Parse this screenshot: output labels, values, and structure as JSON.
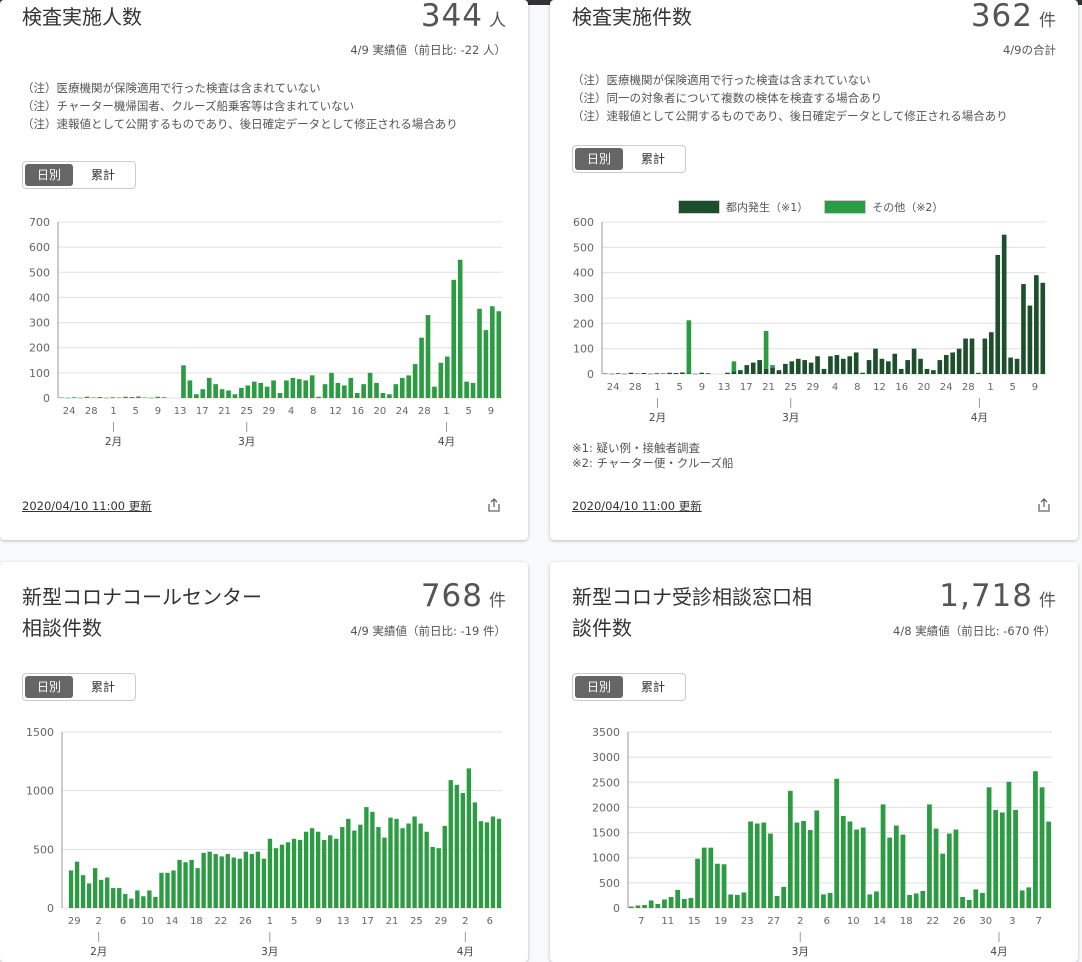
{
  "cards": [
    {
      "title_lines": [
        "検査実施人数"
      ],
      "value": "344",
      "unit": "人",
      "sub": "4/9 実績値（前日比: -22 人）",
      "notes": [
        "（注）医療機関が保険適用で行った検査は含まれていない",
        "（注）チャーター機帰国者、クルーズ船乗客等は含まれていない",
        "（注）速報値として公開するものであり、後日確定データとして修正される場合あり"
      ],
      "toggle": [
        "日別",
        "累計"
      ],
      "footer_date": "2020/04/10 11:00 更新",
      "footnotes": []
    },
    {
      "title_lines": [
        "検査実施件数"
      ],
      "value": "362",
      "unit": "件",
      "sub": "4/9の合計",
      "notes": [
        "（注）医療機関が保険適用で行った検査は含まれていない",
        "（注）同一の対象者について複数の検体を検査する場合あり",
        "（注）速報値として公開するものであり、後日確定データとして修正される場合あり"
      ],
      "toggle": [
        "日別",
        "累計"
      ],
      "footer_date": "2020/04/10 11:00 更新",
      "footnotes": [
        "※1: 疑い例・接触者調査",
        "※2: チャーター便・クルーズ船"
      ]
    },
    {
      "title_lines": [
        "新型コロナコールセンター",
        "相談件数"
      ],
      "value": "768",
      "unit": "件",
      "sub": "4/9 実績値（前日比: -19 件）",
      "notes": [],
      "toggle": [
        "日別",
        "累計"
      ],
      "footer_date": "",
      "footnotes": []
    },
    {
      "title_lines": [
        "新型コロナ受診相談窓口相",
        "談件数"
      ],
      "value": "1,718",
      "unit": "件",
      "sub": "4/8 実績値（前日比: -670 件）",
      "notes": [],
      "toggle": [
        "日別",
        "累計"
      ],
      "footer_date": "",
      "footnotes": []
    }
  ],
  "colors": {
    "green": "#2c9c43",
    "dark_green": "#1d4f2c",
    "grid": "#e0e0e0",
    "axis_text": "#666"
  },
  "chart_data": [
    {
      "type": "bar",
      "ylim": [
        0,
        700
      ],
      "yticks": [
        0,
        100,
        200,
        300,
        400,
        500,
        600,
        700
      ],
      "xtick_labels": [
        "24",
        "28",
        "1",
        "5",
        "9",
        "13",
        "17",
        "21",
        "25",
        "29",
        "4",
        "8",
        "12",
        "16",
        "20",
        "24",
        "28",
        "1",
        "5",
        "9"
      ],
      "month_labels": [
        {
          "label": "2月",
          "at": 2
        },
        {
          "label": "3月",
          "at": 8
        },
        {
          "label": "4月",
          "at": 17
        }
      ],
      "series": [
        {
          "values": [
            2,
            1,
            3,
            1,
            5,
            2,
            4,
            1,
            3,
            2,
            5,
            4,
            6,
            2,
            1,
            5,
            3,
            0,
            0,
            130,
            70,
            15,
            35,
            80,
            55,
            35,
            30,
            15,
            40,
            50,
            65,
            60,
            45,
            70,
            20,
            70,
            80,
            75,
            70,
            90,
            5,
            55,
            100,
            60,
            50,
            80,
            20,
            55,
            100,
            60,
            20,
            15,
            55,
            80,
            90,
            135,
            240,
            330,
            45,
            140,
            165,
            470,
            550,
            65,
            60,
            355,
            270,
            365,
            345
          ]
        }
      ]
    },
    {
      "type": "bar",
      "stacked": true,
      "ylim": [
        0,
        600
      ],
      "yticks": [
        0,
        100,
        200,
        300,
        400,
        500,
        600
      ],
      "xtick_labels": [
        "24",
        "28",
        "1",
        "5",
        "9",
        "13",
        "17",
        "21",
        "25",
        "29",
        "4",
        "8",
        "12",
        "16",
        "20",
        "24",
        "28",
        "1",
        "5",
        "9"
      ],
      "month_labels": [
        {
          "label": "2月",
          "at": 2
        },
        {
          "label": "3月",
          "at": 8
        },
        {
          "label": "4月",
          "at": 16.5
        }
      ],
      "series": [
        {
          "name": "都内発生（※1）",
          "values": [
            2,
            1,
            3,
            1,
            5,
            2,
            4,
            1,
            3,
            2,
            5,
            4,
            6,
            2,
            1,
            5,
            3,
            0,
            0,
            5,
            10,
            15,
            35,
            45,
            55,
            20,
            25,
            15,
            40,
            50,
            60,
            55,
            45,
            70,
            20,
            70,
            75,
            60,
            70,
            85,
            5,
            55,
            100,
            60,
            50,
            80,
            20,
            55,
            100,
            60,
            20,
            15,
            55,
            75,
            85,
            100,
            140,
            140,
            5,
            140,
            165,
            470,
            550,
            65,
            60,
            355,
            270,
            390,
            360
          ]
        },
        {
          "name": "その他（※2）",
          "values": [
            0,
            0,
            0,
            0,
            0,
            0,
            0,
            0,
            0,
            0,
            0,
            0,
            0,
            210,
            0,
            0,
            0,
            0,
            0,
            0,
            40,
            0,
            0,
            0,
            0,
            150,
            10,
            0,
            0,
            0,
            0,
            0,
            0,
            0,
            0,
            0,
            0,
            0,
            0,
            0,
            0,
            0,
            0,
            0,
            0,
            0,
            0,
            0,
            0,
            0,
            0,
            0,
            0,
            0,
            0,
            0,
            0,
            0,
            0,
            0,
            0,
            0,
            0,
            0,
            0,
            0,
            0,
            0,
            0
          ]
        }
      ]
    },
    {
      "type": "bar",
      "ylim": [
        0,
        1500
      ],
      "yticks": [
        0,
        500,
        1000,
        1500
      ],
      "xtick_labels": [
        "29",
        "2",
        "6",
        "10",
        "14",
        "18",
        "22",
        "26",
        "1",
        "5",
        "9",
        "13",
        "17",
        "21",
        "25",
        "29",
        "2",
        "6"
      ],
      "month_labels": [
        {
          "label": "2月",
          "at": 1
        },
        {
          "label": "3月",
          "at": 8
        },
        {
          "label": "4月",
          "at": 16
        }
      ],
      "series": [
        {
          "values": [
            0,
            320,
            395,
            280,
            210,
            340,
            240,
            260,
            170,
            170,
            120,
            80,
            150,
            100,
            150,
            95,
            300,
            300,
            320,
            410,
            390,
            410,
            340,
            470,
            480,
            460,
            440,
            460,
            430,
            420,
            480,
            460,
            480,
            420,
            590,
            510,
            540,
            560,
            590,
            580,
            650,
            680,
            650,
            580,
            620,
            590,
            690,
            760,
            660,
            710,
            860,
            820,
            690,
            600,
            770,
            760,
            680,
            720,
            780,
            720,
            650,
            520,
            510,
            700,
            1090,
            1050,
            980,
            1190,
            900,
            740,
            730,
            780,
            760
          ]
        }
      ]
    },
    {
      "type": "bar",
      "ylim": [
        0,
        3500
      ],
      "yticks": [
        0,
        500,
        1000,
        1500,
        2000,
        2500,
        3000,
        3500
      ],
      "xtick_labels": [
        "7",
        "11",
        "15",
        "19",
        "23",
        "27",
        "2",
        "6",
        "10",
        "14",
        "18",
        "22",
        "26",
        "30",
        "3",
        "7"
      ],
      "month_labels": [
        {
          "label": "3月",
          "at": 6
        },
        {
          "label": "4月",
          "at": 13.5
        }
      ],
      "series": [
        {
          "values": [
            30,
            50,
            60,
            150,
            80,
            170,
            220,
            360,
            180,
            200,
            980,
            1200,
            1200,
            880,
            870,
            270,
            260,
            310,
            1720,
            1680,
            1700,
            1480,
            240,
            420,
            2330,
            1700,
            1730,
            1550,
            1940,
            270,
            300,
            2570,
            1830,
            1720,
            1560,
            1600,
            270,
            330,
            2060,
            1400,
            1640,
            1460,
            260,
            290,
            340,
            2060,
            1580,
            1080,
            1480,
            1560,
            220,
            160,
            370,
            300,
            2400,
            1950,
            1900,
            2510,
            1950,
            350,
            410,
            2720,
            2400,
            1718
          ]
        }
      ]
    }
  ]
}
